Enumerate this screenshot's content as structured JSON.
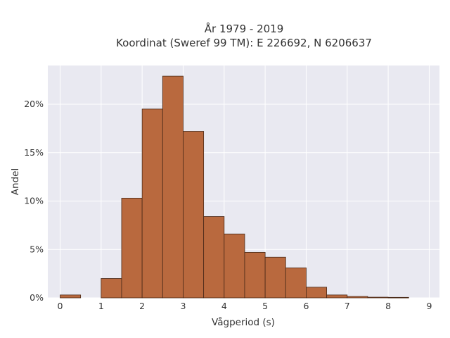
{
  "chart_data": {
    "type": "bar",
    "title_line1": "År 1979 - 2019",
    "title_line2": "Koordinat (Sweref 99 TM): E 226692, N 6206637",
    "xlabel": "Vågperiod (s)",
    "ylabel": "Andel",
    "bin_width": 0.5,
    "bin_starts": [
      0,
      0.5,
      1,
      1.5,
      2,
      2.5,
      3,
      3.5,
      4,
      4.5,
      5,
      5.5,
      6,
      6.5,
      7,
      7.5,
      8,
      8.5
    ],
    "values": [
      0.3,
      0,
      2.0,
      10.3,
      19.5,
      22.9,
      17.2,
      8.4,
      6.6,
      4.7,
      4.2,
      3.1,
      1.1,
      0.3,
      0.15,
      0.07,
      0.05,
      0
    ],
    "xlim": [
      -0.3,
      9.25
    ],
    "ylim": [
      0,
      24
    ],
    "x_ticks": [
      0,
      1,
      2,
      3,
      4,
      5,
      6,
      7,
      8,
      9
    ],
    "x_tick_labels": [
      "0",
      "1",
      "2",
      "3",
      "4",
      "5",
      "6",
      "7",
      "8",
      "9"
    ],
    "y_ticks": [
      0,
      5,
      10,
      15,
      20
    ],
    "y_tick_labels": [
      "0%",
      "5%",
      "10%",
      "15%",
      "20%"
    ],
    "grid": true,
    "colors": {
      "bar_fill": "#b9693e",
      "bar_stroke": "#4a2a18",
      "plot_bg": "#e9e9f1",
      "grid": "#ffffff"
    }
  }
}
